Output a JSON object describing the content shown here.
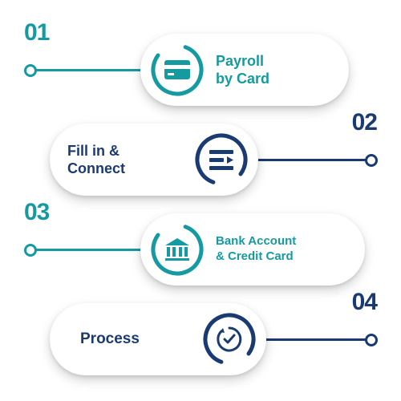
{
  "type": "infographic",
  "background_color": "#ffffff",
  "pill": {
    "bg": "#ffffff",
    "shadow": "0 6px 14px rgba(0,0,0,.18)",
    "height": 90,
    "radius": 45
  },
  "colors": {
    "teal": "#159aa1",
    "navy": "#1a3a72",
    "teal_dark": "#0f7d84"
  },
  "steps": [
    {
      "num": "01",
      "label": "Payroll\nby Card",
      "color": "#159aa1",
      "side": "left",
      "icon": "credit-card"
    },
    {
      "num": "02",
      "label": "Fill in &\nConnect",
      "color": "#1a3a72",
      "side": "right",
      "icon": "form-arrow"
    },
    {
      "num": "03",
      "label": "Bank Account\n& Credit Card",
      "color": "#159aa1",
      "side": "left",
      "icon": "bank"
    },
    {
      "num": "04",
      "label": "Process",
      "color": "#1a3a72",
      "side": "right",
      "icon": "cycle-check"
    }
  ],
  "typography": {
    "num_fontsize": 30,
    "num_weight": 900,
    "label_weight": 700
  },
  "ring": {
    "outer_d": 68,
    "stroke": 5,
    "gap_deg": 40
  }
}
